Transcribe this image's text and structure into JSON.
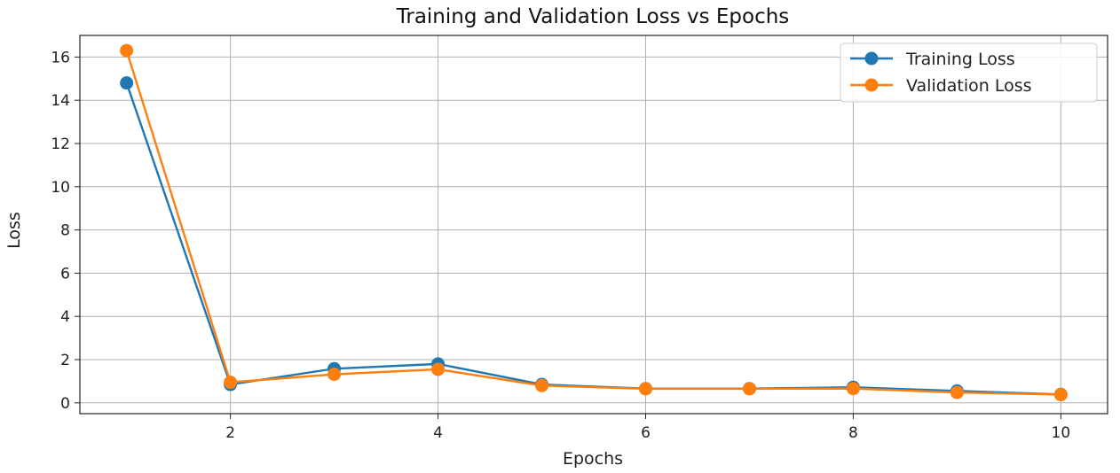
{
  "chart_data": {
    "type": "line",
    "title": "Training and Validation Loss vs Epochs",
    "xlabel": "Epochs",
    "ylabel": "Loss",
    "x": [
      1,
      2,
      3,
      4,
      5,
      6,
      7,
      8,
      9,
      10
    ],
    "xlim": [
      0.55,
      10.45
    ],
    "ylim": [
      -0.5,
      17.0
    ],
    "xticks": [
      2,
      4,
      6,
      8,
      10
    ],
    "yticks": [
      0,
      2,
      4,
      6,
      8,
      10,
      12,
      14,
      16
    ],
    "grid": true,
    "legend_position": "top-right",
    "series": [
      {
        "name": "Training Loss",
        "color": "#1f77b4",
        "marker": "circle",
        "values": [
          14.8,
          0.85,
          1.58,
          1.8,
          0.85,
          0.66,
          0.66,
          0.72,
          0.55,
          0.39
        ]
      },
      {
        "name": "Validation Loss",
        "color": "#ff7f0e",
        "marker": "circle",
        "values": [
          16.3,
          0.95,
          1.32,
          1.55,
          0.8,
          0.65,
          0.65,
          0.66,
          0.48,
          0.38
        ]
      }
    ]
  }
}
